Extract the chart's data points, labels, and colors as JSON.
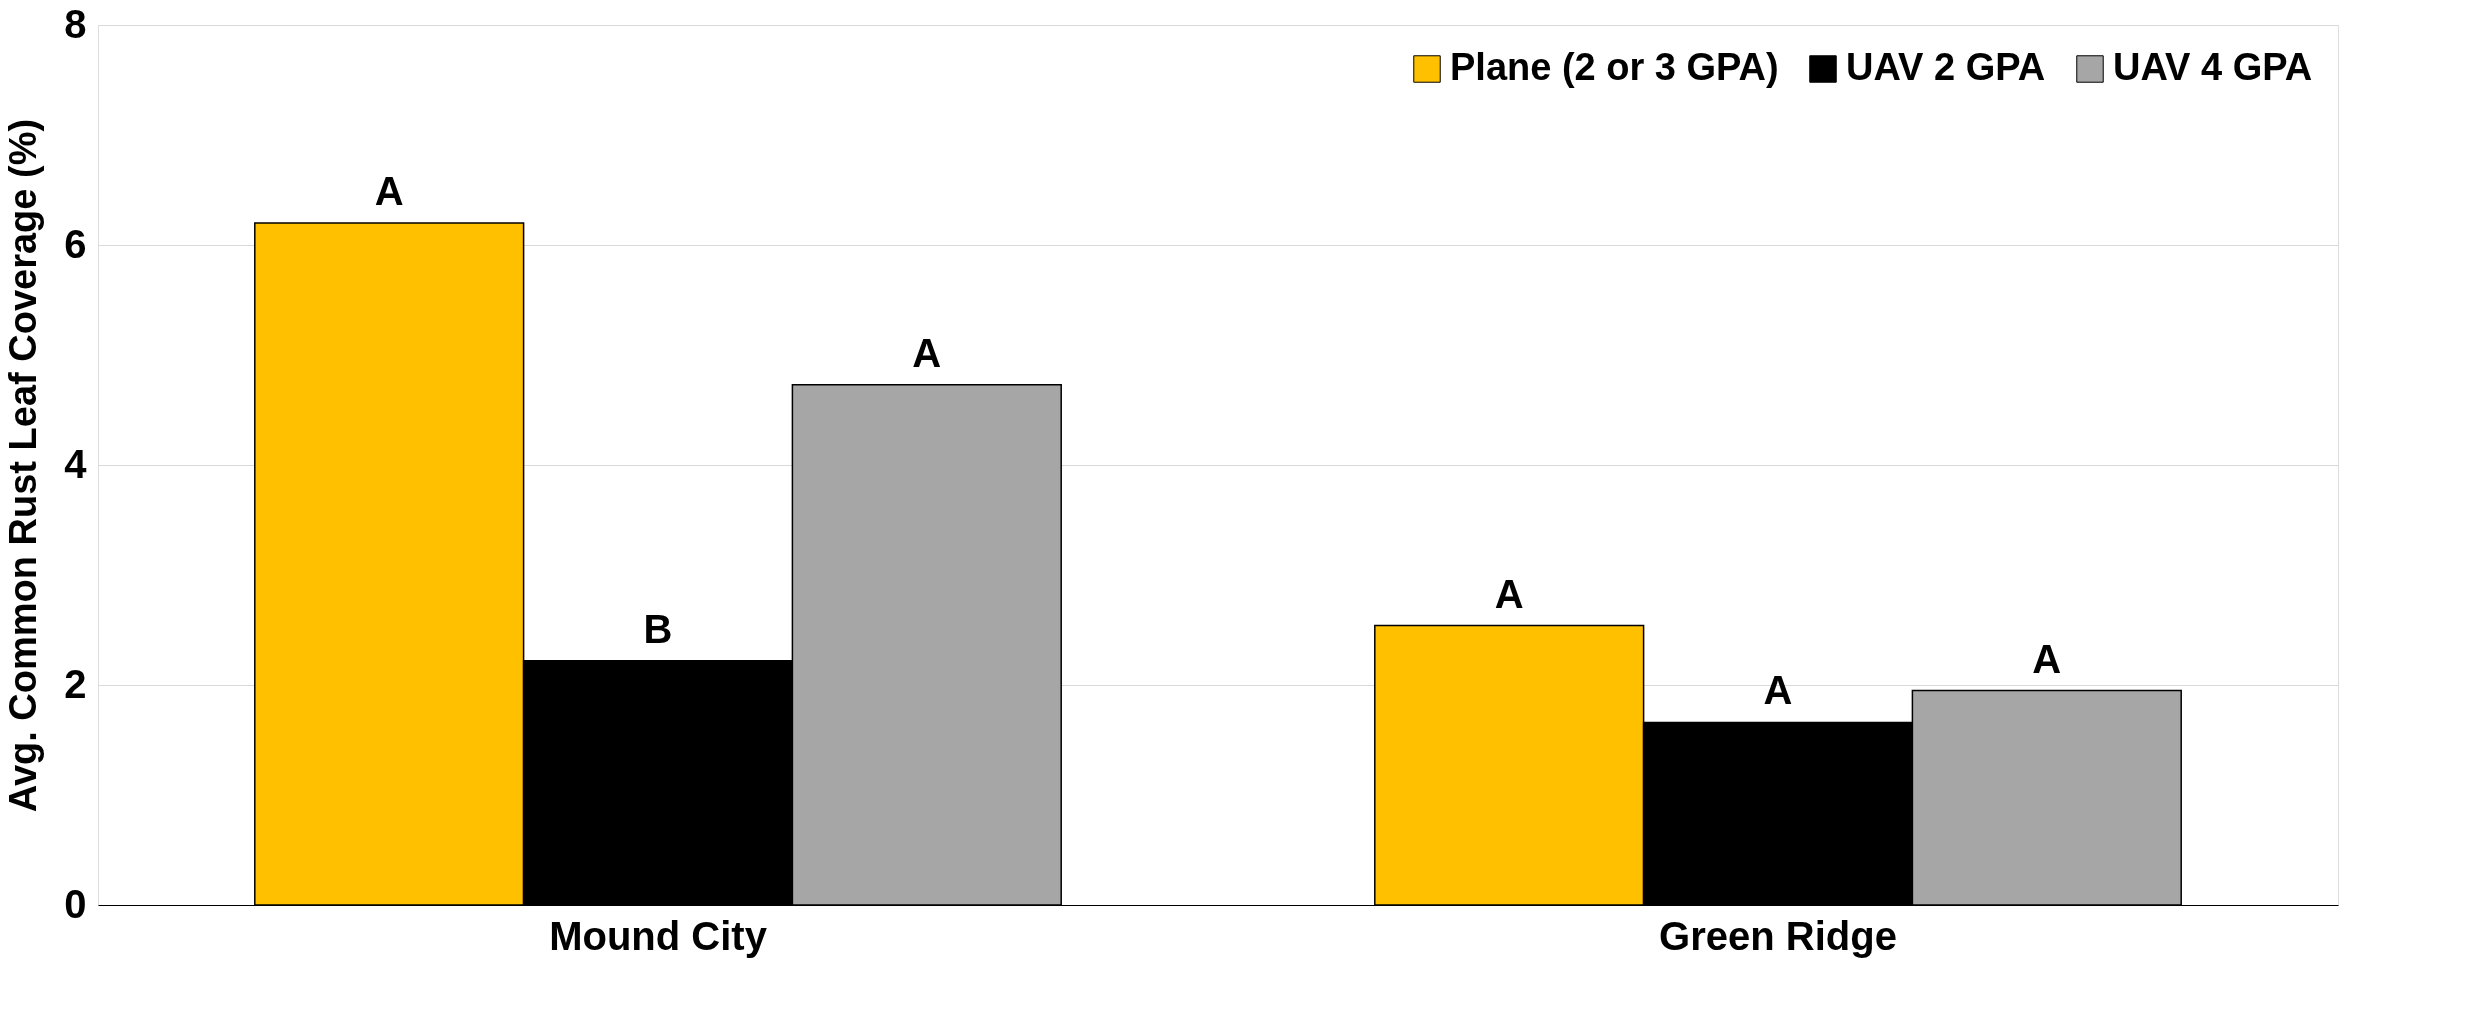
{
  "chart_data": {
    "type": "bar",
    "ylabel": "Avg. Common Rust Leaf Coverage (%)",
    "categories": [
      "Mound City",
      "Green Ridge"
    ],
    "series": [
      {
        "name": "Plane (2 or 3 GPA)",
        "color": "#ffc000",
        "values": [
          6.2,
          2.54
        ],
        "value_labels": [
          "A",
          "A"
        ]
      },
      {
        "name": "UAV 2 GPA",
        "color": "#000000",
        "values": [
          2.22,
          1.66
        ],
        "value_labels": [
          "B",
          "A"
        ]
      },
      {
        "name": "UAV 4 GPA",
        "color": "#a6a6a6",
        "values": [
          4.73,
          1.95
        ],
        "value_labels": [
          "A",
          "A"
        ]
      }
    ],
    "ylim": [
      0,
      8
    ],
    "yticks": [
      0,
      2,
      4,
      6,
      8
    ],
    "grid": "y",
    "legend": "top right"
  }
}
